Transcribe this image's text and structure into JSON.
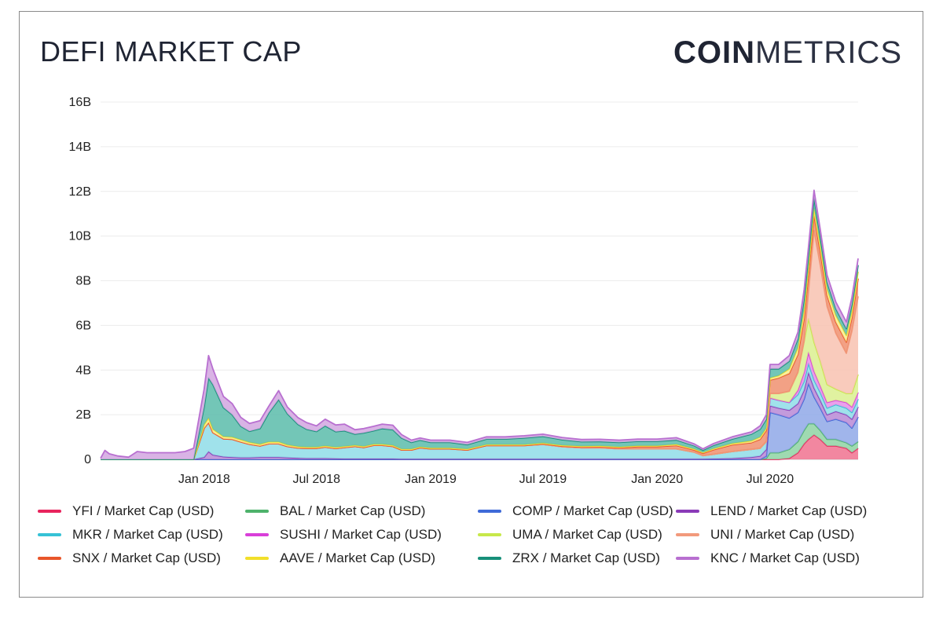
{
  "header": {
    "title": "DEFI MARKET CAP",
    "brand_bold": "COIN",
    "brand_light": "METRICS"
  },
  "chart_data": {
    "type": "area",
    "stacked": true,
    "title": "DEFI MARKET CAP",
    "xlabel": "",
    "ylabel": "",
    "ylim": [
      0,
      16
    ],
    "y_unit": "B",
    "yticks": [
      "0",
      "2B",
      "4B",
      "6B",
      "8B",
      "10B",
      "12B",
      "14B",
      "16B"
    ],
    "xticks": [
      {
        "date": "2018-01-01",
        "label": "Jan 2018"
      },
      {
        "date": "2018-07-01",
        "label": "Jul 2018"
      },
      {
        "date": "2019-01-01",
        "label": "Jan 2019"
      },
      {
        "date": "2019-07-01",
        "label": "Jul 2019"
      },
      {
        "date": "2020-01-01",
        "label": "Jan 2020"
      },
      {
        "date": "2020-07-01",
        "label": "Jul 2020"
      }
    ],
    "x_range": [
      "2017-07-18",
      "2020-11-20"
    ],
    "grid": true,
    "legend_position": "bottom",
    "x": [
      "2017-07-18",
      "2017-07-25",
      "2017-08-01",
      "2017-08-15",
      "2017-09-01",
      "2017-09-15",
      "2017-10-01",
      "2017-10-15",
      "2017-11-01",
      "2017-11-15",
      "2017-12-01",
      "2017-12-15",
      "2018-01-01",
      "2018-01-08",
      "2018-01-15",
      "2018-02-01",
      "2018-02-15",
      "2018-03-01",
      "2018-03-15",
      "2018-04-01",
      "2018-04-15",
      "2018-05-01",
      "2018-05-15",
      "2018-06-01",
      "2018-06-15",
      "2018-07-01",
      "2018-07-15",
      "2018-08-01",
      "2018-08-15",
      "2018-09-01",
      "2018-09-15",
      "2018-10-01",
      "2018-10-15",
      "2018-11-01",
      "2018-11-15",
      "2018-12-01",
      "2018-12-15",
      "2019-01-01",
      "2019-02-01",
      "2019-03-01",
      "2019-04-01",
      "2019-05-01",
      "2019-06-01",
      "2019-07-01",
      "2019-08-01",
      "2019-09-01",
      "2019-10-01",
      "2019-11-01",
      "2019-12-01",
      "2020-01-01",
      "2020-02-01",
      "2020-03-01",
      "2020-03-15",
      "2020-04-01",
      "2020-05-01",
      "2020-06-01",
      "2020-06-15",
      "2020-06-25",
      "2020-07-01",
      "2020-07-15",
      "2020-08-01",
      "2020-08-15",
      "2020-08-25",
      "2020-09-01",
      "2020-09-10",
      "2020-09-20",
      "2020-10-01",
      "2020-10-15",
      "2020-11-01",
      "2020-11-10",
      "2020-11-20"
    ],
    "series": [
      {
        "name": "YFI / Market Cap (USD)",
        "color": "#e8245d",
        "fill": "#f0728f",
        "values": [
          0,
          0,
          0,
          0,
          0,
          0,
          0,
          0,
          0,
          0,
          0,
          0,
          0,
          0,
          0,
          0,
          0,
          0,
          0,
          0,
          0,
          0,
          0,
          0,
          0,
          0,
          0,
          0,
          0,
          0,
          0,
          0,
          0,
          0,
          0,
          0,
          0,
          0,
          0,
          0,
          0,
          0,
          0,
          0,
          0,
          0,
          0,
          0,
          0,
          0,
          0,
          0,
          0,
          0,
          0,
          0,
          0,
          0,
          0,
          0,
          0.05,
          0.3,
          0.7,
          0.9,
          1.1,
          0.9,
          0.6,
          0.6,
          0.5,
          0.3,
          0.5
        ]
      },
      {
        "name": "BAL / Market Cap (USD)",
        "color": "#4eb26b",
        "fill": "#8ed4a3",
        "values": [
          0,
          0,
          0,
          0,
          0,
          0,
          0,
          0,
          0,
          0,
          0,
          0,
          0,
          0,
          0,
          0,
          0,
          0,
          0,
          0,
          0,
          0,
          0,
          0,
          0,
          0,
          0,
          0,
          0,
          0,
          0,
          0,
          0,
          0,
          0,
          0,
          0,
          0,
          0,
          0,
          0,
          0,
          0,
          0,
          0,
          0,
          0,
          0,
          0,
          0,
          0,
          0,
          0,
          0,
          0,
          0,
          0,
          0.05,
          0.3,
          0.3,
          0.4,
          0.5,
          0.6,
          0.7,
          0.5,
          0.4,
          0.3,
          0.3,
          0.25,
          0.3,
          0.3
        ]
      },
      {
        "name": "COMP / Market Cap (USD)",
        "color": "#3f6ad8",
        "fill": "#8fa8e8",
        "values": [
          0,
          0,
          0,
          0,
          0,
          0,
          0,
          0,
          0,
          0,
          0,
          0,
          0,
          0,
          0,
          0,
          0,
          0,
          0,
          0,
          0,
          0,
          0,
          0,
          0,
          0,
          0,
          0,
          0,
          0,
          0,
          0,
          0,
          0,
          0,
          0,
          0,
          0,
          0,
          0,
          0,
          0,
          0,
          0,
          0,
          0,
          0,
          0,
          0,
          0,
          0,
          0,
          0,
          0,
          0,
          0,
          0,
          0.1,
          1.8,
          1.7,
          1.4,
          1.3,
          1.4,
          1.8,
          1.2,
          1.0,
          0.8,
          0.9,
          0.9,
          0.8,
          1.1
        ]
      },
      {
        "name": "LEND / Market Cap (USD)",
        "color": "#8a3bb8",
        "fill": "#b889d6",
        "values": [
          0,
          0,
          0,
          0,
          0,
          0,
          0,
          0,
          0,
          0,
          0,
          0,
          0.1,
          0.35,
          0.2,
          0.12,
          0.1,
          0.08,
          0.08,
          0.1,
          0.1,
          0.1,
          0.08,
          0.06,
          0.05,
          0.05,
          0.05,
          0.04,
          0.03,
          0.03,
          0.03,
          0.03,
          0.03,
          0.03,
          0.02,
          0.02,
          0.02,
          0.02,
          0.02,
          0.02,
          0.02,
          0.02,
          0.02,
          0.02,
          0.02,
          0.02,
          0.02,
          0.02,
          0.02,
          0.02,
          0.02,
          0.02,
          0.02,
          0.03,
          0.05,
          0.1,
          0.15,
          0.3,
          0.3,
          0.3,
          0.35,
          0.4,
          0.4,
          0.5,
          0.4,
          0.35,
          0.3,
          0.35,
          0.35,
          0.4,
          0.45
        ]
      },
      {
        "name": "MKR / Market Cap (USD)",
        "color": "#36c2d6",
        "fill": "#8fdde8",
        "values": [
          0,
          0,
          0,
          0,
          0,
          0,
          0,
          0,
          0,
          0,
          0,
          0,
          1.3,
          1.3,
          1.0,
          0.8,
          0.8,
          0.7,
          0.6,
          0.5,
          0.6,
          0.6,
          0.5,
          0.45,
          0.45,
          0.45,
          0.5,
          0.45,
          0.5,
          0.55,
          0.5,
          0.6,
          0.6,
          0.55,
          0.4,
          0.4,
          0.5,
          0.45,
          0.45,
          0.4,
          0.6,
          0.6,
          0.6,
          0.65,
          0.55,
          0.5,
          0.5,
          0.45,
          0.45,
          0.45,
          0.45,
          0.3,
          0.15,
          0.2,
          0.3,
          0.35,
          0.35,
          0.35,
          0.35,
          0.35,
          0.35,
          0.4,
          0.4,
          0.4,
          0.35,
          0.35,
          0.3,
          0.3,
          0.3,
          0.3,
          0.35
        ]
      },
      {
        "name": "SUSHI / Market Cap (USD)",
        "color": "#d93fd9",
        "fill": "#e88fe8",
        "values": [
          0,
          0,
          0,
          0,
          0,
          0,
          0,
          0,
          0,
          0,
          0,
          0,
          0,
          0,
          0,
          0,
          0,
          0,
          0,
          0,
          0,
          0,
          0,
          0,
          0,
          0,
          0,
          0,
          0,
          0,
          0,
          0,
          0,
          0,
          0,
          0,
          0,
          0,
          0,
          0,
          0,
          0,
          0,
          0,
          0,
          0,
          0,
          0,
          0,
          0,
          0,
          0,
          0,
          0,
          0,
          0,
          0,
          0,
          0,
          0,
          0,
          0.2,
          0.4,
          0.5,
          0.4,
          0.3,
          0.25,
          0.2,
          0.25,
          0.25,
          0.3
        ]
      },
      {
        "name": "UMA / Market Cap (USD)",
        "color": "#c7e84a",
        "fill": "#dbf08f",
        "values": [
          0,
          0,
          0,
          0,
          0,
          0,
          0,
          0,
          0,
          0,
          0,
          0,
          0,
          0,
          0,
          0,
          0,
          0,
          0,
          0,
          0,
          0,
          0,
          0,
          0,
          0,
          0,
          0,
          0,
          0,
          0,
          0,
          0,
          0,
          0,
          0,
          0,
          0,
          0,
          0,
          0,
          0,
          0,
          0,
          0,
          0,
          0,
          0,
          0,
          0,
          0,
          0,
          0,
          0,
          0,
          0,
          0,
          0,
          0.2,
          0.3,
          0.5,
          0.8,
          1.4,
          1.5,
          1.3,
          1.1,
          0.8,
          0.5,
          0.4,
          0.6,
          0.8
        ]
      },
      {
        "name": "UNI / Market Cap (USD)",
        "color": "#f29a7c",
        "fill": "#f8c2b0",
        "values": [
          0,
          0,
          0,
          0,
          0,
          0,
          0,
          0,
          0,
          0,
          0,
          0,
          0,
          0,
          0,
          0,
          0,
          0,
          0,
          0,
          0,
          0,
          0,
          0,
          0,
          0,
          0,
          0,
          0,
          0,
          0,
          0,
          0,
          0,
          0,
          0,
          0,
          0,
          0,
          0,
          0,
          0,
          0,
          0,
          0,
          0,
          0,
          0,
          0,
          0,
          0,
          0,
          0,
          0,
          0,
          0,
          0,
          0,
          0,
          0,
          0,
          0,
          0,
          1.2,
          5.0,
          4.3,
          3.5,
          2.5,
          1.8,
          2.8,
          3.5
        ]
      },
      {
        "name": "SNX / Market Cap (USD)",
        "color": "#e8552a",
        "fill": "#f09070",
        "values": [
          0,
          0,
          0,
          0,
          0,
          0,
          0,
          0,
          0,
          0,
          0,
          0,
          0,
          0,
          0,
          0,
          0,
          0,
          0,
          0,
          0,
          0,
          0,
          0,
          0,
          0,
          0,
          0,
          0,
          0,
          0,
          0,
          0,
          0,
          0,
          0,
          0,
          0,
          0,
          0,
          0,
          0,
          0,
          0.02,
          0.02,
          0.03,
          0.04,
          0.05,
          0.1,
          0.1,
          0.15,
          0.1,
          0.1,
          0.2,
          0.3,
          0.3,
          0.4,
          0.5,
          0.6,
          0.7,
          0.8,
          0.8,
          1.0,
          0.8,
          0.7,
          0.6,
          0.5,
          0.5,
          0.5,
          0.6,
          0.8
        ]
      },
      {
        "name": "AAVE / Market Cap (USD)",
        "color": "#f2df2a",
        "fill": "#f8ee8f",
        "values": [
          0,
          0,
          0,
          0,
          0,
          0,
          0,
          0,
          0,
          0,
          0,
          0,
          0.15,
          0.2,
          0.15,
          0.1,
          0.1,
          0.1,
          0.08,
          0.08,
          0.08,
          0.08,
          0.07,
          0.06,
          0.05,
          0.05,
          0.05,
          0.05,
          0.05,
          0.05,
          0.05,
          0.05,
          0.05,
          0.05,
          0.04,
          0.04,
          0.04,
          0.04,
          0.04,
          0.04,
          0.04,
          0.04,
          0.04,
          0.04,
          0.04,
          0.04,
          0.04,
          0.04,
          0.04,
          0.04,
          0.05,
          0.04,
          0.04,
          0.05,
          0.06,
          0.08,
          0.1,
          0.1,
          0.1,
          0.1,
          0.2,
          0.3,
          0.4,
          0.3,
          0.3,
          0.3,
          0.3,
          0.3,
          0.3,
          0.3,
          0.3
        ]
      },
      {
        "name": "ZRX / Market Cap (USD)",
        "color": "#17907a",
        "fill": "#5bbcaa",
        "values": [
          0,
          0,
          0,
          0,
          0,
          0,
          0,
          0,
          0,
          0,
          0,
          0,
          0.8,
          1.8,
          2.0,
          1.3,
          1.0,
          0.6,
          0.5,
          0.7,
          1.3,
          1.9,
          1.4,
          1.0,
          0.8,
          0.7,
          0.9,
          0.7,
          0.7,
          0.5,
          0.6,
          0.6,
          0.7,
          0.7,
          0.5,
          0.3,
          0.3,
          0.25,
          0.25,
          0.2,
          0.25,
          0.25,
          0.3,
          0.3,
          0.25,
          0.2,
          0.2,
          0.2,
          0.2,
          0.2,
          0.2,
          0.15,
          0.1,
          0.15,
          0.2,
          0.3,
          0.35,
          0.4,
          0.4,
          0.3,
          0.35,
          0.4,
          0.5,
          0.5,
          0.45,
          0.4,
          0.3,
          0.3,
          0.3,
          0.3,
          0.3
        ]
      },
      {
        "name": "KNC / Market Cap (USD)",
        "color": "#b86fd0",
        "fill": "#d2a6e0",
        "values": [
          0.05,
          0.4,
          0.25,
          0.15,
          0.1,
          0.35,
          0.3,
          0.3,
          0.3,
          0.3,
          0.35,
          0.5,
          0.8,
          1.0,
          0.7,
          0.5,
          0.5,
          0.4,
          0.35,
          0.35,
          0.3,
          0.4,
          0.3,
          0.3,
          0.3,
          0.25,
          0.3,
          0.3,
          0.3,
          0.2,
          0.2,
          0.2,
          0.2,
          0.2,
          0.15,
          0.1,
          0.1,
          0.1,
          0.1,
          0.1,
          0.1,
          0.1,
          0.1,
          0.1,
          0.1,
          0.1,
          0.1,
          0.1,
          0.1,
          0.1,
          0.1,
          0.08,
          0.06,
          0.08,
          0.1,
          0.1,
          0.15,
          0.2,
          0.2,
          0.2,
          0.25,
          0.3,
          0.4,
          0.4,
          0.35,
          0.3,
          0.3,
          0.3,
          0.3,
          0.3,
          0.3
        ]
      }
    ]
  }
}
